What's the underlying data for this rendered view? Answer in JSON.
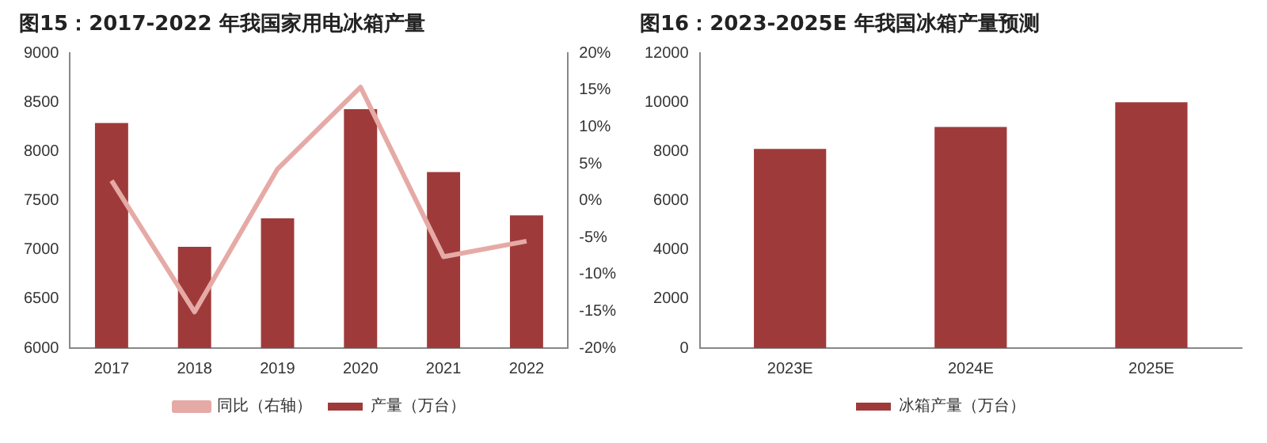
{
  "chart_data": [
    {
      "type": "bar",
      "title": "图15：2017-2022 年我国家用电冰箱产量",
      "categories": [
        "2017",
        "2018",
        "2019",
        "2020",
        "2021",
        "2022"
      ],
      "series": [
        {
          "name": "产量（万台）",
          "type": "bar",
          "color": "#9e3b3a",
          "values": [
            8290,
            7030,
            7320,
            8430,
            7790,
            7350
          ]
        },
        {
          "name": "同比（右轴）",
          "type": "line",
          "axis": "y2",
          "color": "#e6aaa6",
          "values": [
            2.7,
            -15.1,
            4.3,
            15.4,
            -7.6,
            -5.5
          ]
        }
      ],
      "ylim": [
        6000,
        9000
      ],
      "yticks": [
        6000,
        6500,
        7000,
        7500,
        8000,
        8500,
        9000
      ],
      "y2lim": [
        -20,
        20
      ],
      "y2ticks": [
        {
          "value": -20,
          "label": "-20%"
        },
        {
          "value": -15,
          "label": "-15%"
        },
        {
          "value": -10,
          "label": "-10%"
        },
        {
          "value": -5,
          "label": "-5%"
        },
        {
          "value": 0,
          "label": "0%"
        },
        {
          "value": 5,
          "label": "5%"
        },
        {
          "value": 10,
          "label": "10%"
        },
        {
          "value": 15,
          "label": "15%"
        },
        {
          "value": 20,
          "label": "20%"
        }
      ],
      "grid": false,
      "legend": "bottom",
      "marker": "none"
    },
    {
      "type": "bar",
      "title": "图16：2023-2025E 年我国冰箱产量预测",
      "categories": [
        "2023E",
        "2024E",
        "2025E"
      ],
      "series": [
        {
          "name": "冰箱产量（万台）",
          "color": "#9e3b3a",
          "values": [
            8100,
            9000,
            10000
          ]
        }
      ],
      "ylim": [
        0,
        12000
      ],
      "yticks": [
        0,
        2000,
        4000,
        6000,
        8000,
        10000,
        12000
      ],
      "grid": false,
      "legend": "bottom"
    }
  ]
}
